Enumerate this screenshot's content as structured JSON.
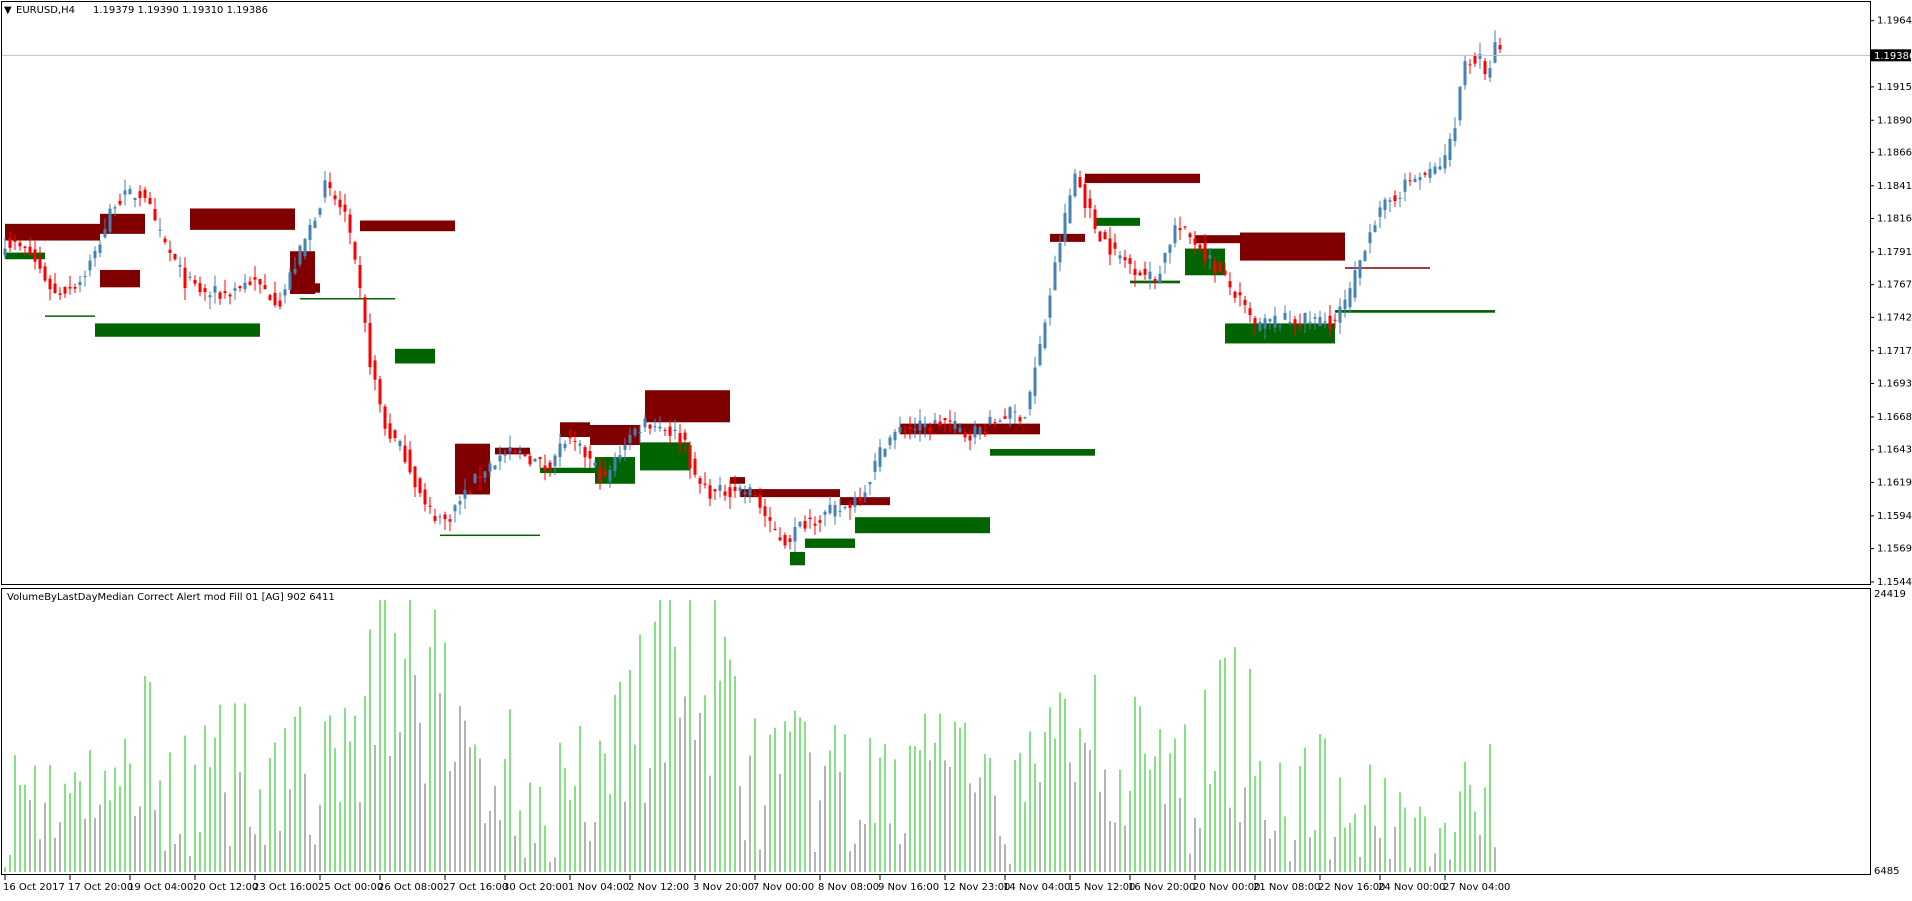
{
  "header": {
    "symbol": "EURUSD,H4",
    "ohlc": "1.19379 1.19390 1.19310 1.19386"
  },
  "subwindow": {
    "indicator_label": "VolumeByLastDayMedian Correct Alert mod Fill 01 [AG] 902 6411",
    "max_label": "24419",
    "min_label": "6485"
  },
  "colors": {
    "bull_candle": "#4682B4",
    "bear_candle": "#FF0000",
    "supply_zone": "#800000",
    "demand_zone": "#006400",
    "volume_above": "#32CD32",
    "volume_below": "#808080",
    "price_line": "#C0C0C0"
  },
  "chart_data": [
    {
      "type": "candlestick",
      "ylim": [
        1.15445,
        1.1977
      ],
      "y_ticks": [
        "1.19645",
        "1.19150",
        "1.18900",
        "1.18660",
        "1.18410",
        "1.18165",
        "1.17915",
        "1.17670",
        "1.17425",
        "1.17175",
        "1.16930",
        "1.16680",
        "1.16435",
        "1.16190",
        "1.15940",
        "1.15695",
        "1.15445"
      ],
      "current_price": "1.19386",
      "x_labels": [
        "16 Oct 2017",
        "17 Oct 20:00",
        "19 Oct 04:00",
        "20 Oct 12:00",
        "23 Oct 16:00",
        "25 Oct 00:00",
        "26 Oct 08:00",
        "27 Oct 16:00",
        "30 Oct 20:00",
        "1 Nov 04:00",
        "2 Nov 12:00",
        "3 Nov 20:00",
        "7 Nov 00:00",
        "8 Nov 08:00",
        "9 Nov 16:00",
        "12 Nov 23:00",
        "14 Nov 04:00",
        "15 Nov 12:00",
        "16 Nov 20:00",
        "20 Nov 00:00",
        "21 Nov 08:00",
        "22 Nov 16:00",
        "24 Nov 00:00",
        "27 Nov 04:00"
      ],
      "anchors": [
        [
          0,
          1.18
        ],
        [
          5,
          1.179
        ],
        [
          10,
          1.176
        ],
        [
          15,
          1.177
        ],
        [
          18,
          1.179
        ],
        [
          22,
          1.183
        ],
        [
          26,
          1.1835
        ],
        [
          28,
          1.1835
        ],
        [
          30,
          1.181
        ],
        [
          33,
          1.179
        ],
        [
          36,
          1.177
        ],
        [
          40,
          1.176
        ],
        [
          44,
          1.176
        ],
        [
          49,
          1.177
        ],
        [
          55,
          1.1755
        ],
        [
          60,
          1.18
        ],
        [
          64,
          1.184
        ],
        [
          68,
          1.182
        ],
        [
          71,
          1.176
        ],
        [
          73,
          1.171
        ],
        [
          76,
          1.166
        ],
        [
          80,
          1.164
        ],
        [
          84,
          1.16
        ],
        [
          88,
          1.159
        ],
        [
          92,
          1.161
        ],
        [
          96,
          1.163
        ],
        [
          100,
          1.164
        ],
        [
          104,
          1.164
        ],
        [
          108,
          1.163
        ],
        [
          112,
          1.165
        ],
        [
          116,
          1.164
        ],
        [
          120,
          1.162
        ],
        [
          124,
          1.165
        ],
        [
          128,
          1.1665
        ],
        [
          132,
          1.166
        ],
        [
          136,
          1.165
        ],
        [
          138,
          1.162
        ],
        [
          142,
          1.161
        ],
        [
          146,
          1.1615
        ],
        [
          150,
          1.161
        ],
        [
          153,
          1.1585
        ],
        [
          156,
          1.1575
        ],
        [
          160,
          1.159
        ],
        [
          164,
          1.1595
        ],
        [
          168,
          1.16
        ],
        [
          172,
          1.1615
        ],
        [
          176,
          1.165
        ],
        [
          180,
          1.166
        ],
        [
          184,
          1.166
        ],
        [
          188,
          1.1665
        ],
        [
          192,
          1.1655
        ],
        [
          196,
          1.166
        ],
        [
          200,
          1.167
        ],
        [
          204,
          1.167
        ],
        [
          207,
          1.172
        ],
        [
          211,
          1.18
        ],
        [
          214,
          1.185
        ],
        [
          216,
          1.183
        ],
        [
          218,
          1.181
        ],
        [
          222,
          1.179
        ],
        [
          226,
          1.178
        ],
        [
          230,
          1.177
        ],
        [
          234,
          1.181
        ],
        [
          238,
          1.18
        ],
        [
          242,
          1.178
        ],
        [
          246,
          1.176
        ],
        [
          250,
          1.1735
        ],
        [
          254,
          1.174
        ],
        [
          258,
          1.174
        ],
        [
          262,
          1.174
        ],
        [
          266,
          1.174
        ],
        [
          269,
          1.176
        ],
        [
          273,
          1.181
        ],
        [
          277,
          1.183
        ],
        [
          281,
          1.1845
        ],
        [
          285,
          1.185
        ],
        [
          288,
          1.186
        ],
        [
          290,
          1.189
        ],
        [
          292,
          1.1935
        ],
        [
          295,
          1.1935
        ],
        [
          296,
          1.192
        ],
        [
          298,
          1.1945
        ],
        [
          299,
          1.1939
        ]
      ]
    },
    {
      "type": "zones",
      "supply": [
        {
          "bars": [
            0,
            19
          ],
          "top": 1.18125,
          "bottom": 1.18
        },
        {
          "bars": [
            19,
            28
          ],
          "top": 1.182,
          "bottom": 1.1805
        },
        {
          "bars": [
            37,
            58
          ],
          "top": 1.1824,
          "bottom": 1.1808
        },
        {
          "bars": [
            19,
            27
          ],
          "top": 1.1778,
          "bottom": 1.1765
        },
        {
          "bars": [
            57,
            62
          ],
          "top": 1.1792,
          "bottom": 1.176
        },
        {
          "bars": [
            58,
            63
          ],
          "top": 1.1768,
          "bottom": 1.1761
        },
        {
          "bars": [
            71,
            90
          ],
          "top": 1.1815,
          "bottom": 1.1807
        },
        {
          "bars": [
            90,
            97
          ],
          "top": 1.1648,
          "bottom": 1.161
        },
        {
          "bars": [
            98,
            105
          ],
          "top": 1.1645,
          "bottom": 1.164
        },
        {
          "bars": [
            111,
            117
          ],
          "top": 1.1664,
          "bottom": 1.1653
        },
        {
          "bars": [
            117,
            127
          ],
          "top": 1.1662,
          "bottom": 1.1647
        },
        {
          "bars": [
            128,
            145
          ],
          "top": 1.1688,
          "bottom": 1.1664
        },
        {
          "bars": [
            145,
            148
          ],
          "top": 1.1623,
          "bottom": 1.1618
        },
        {
          "bars": [
            147,
            167
          ],
          "top": 1.1614,
          "bottom": 1.1608
        },
        {
          "bars": [
            167,
            177
          ],
          "top": 1.1608,
          "bottom": 1.1602
        },
        {
          "bars": [
            179,
            207
          ],
          "top": 1.1663,
          "bottom": 1.1655
        },
        {
          "bars": [
            216,
            239
          ],
          "top": 1.185,
          "bottom": 1.1843
        },
        {
          "bars": [
            209,
            216
          ],
          "top": 1.1805,
          "bottom": 1.1799
        },
        {
          "bars": [
            238,
            247
          ],
          "top": 1.1804,
          "bottom": 1.1798
        },
        {
          "bars": [
            247,
            268
          ],
          "top": 1.1806,
          "bottom": 1.1785
        },
        {
          "bars": [
            268,
            285
          ],
          "top": 1.178,
          "bottom": 1.1779
        }
      ],
      "demand": [
        {
          "bars": [
            0,
            8
          ],
          "top": 1.1791,
          "bottom": 1.1786
        },
        {
          "bars": [
            8,
            18
          ],
          "top": 1.1744,
          "bottom": 1.1743
        },
        {
          "bars": [
            18,
            51
          ],
          "top": 1.1738,
          "bottom": 1.1728
        },
        {
          "bars": [
            59,
            78
          ],
          "top": 1.1757,
          "bottom": 1.1756
        },
        {
          "bars": [
            78,
            86
          ],
          "top": 1.1719,
          "bottom": 1.1708
        },
        {
          "bars": [
            87,
            107
          ],
          "top": 1.158,
          "bottom": 1.1579
        },
        {
          "bars": [
            107,
            118
          ],
          "top": 1.163,
          "bottom": 1.1626
        },
        {
          "bars": [
            118,
            126
          ],
          "top": 1.1638,
          "bottom": 1.1618
        },
        {
          "bars": [
            127,
            137
          ],
          "top": 1.1649,
          "bottom": 1.1628
        },
        {
          "bars": [
            157,
            160
          ],
          "top": 1.1567,
          "bottom": 1.1557
        },
        {
          "bars": [
            160,
            170
          ],
          "top": 1.1577,
          "bottom": 1.157
        },
        {
          "bars": [
            170,
            197
          ],
          "top": 1.1593,
          "bottom": 1.1581
        },
        {
          "bars": [
            197,
            218
          ],
          "top": 1.1644,
          "bottom": 1.1639
        },
        {
          "bars": [
            218,
            227
          ],
          "top": 1.1817,
          "bottom": 1.1811
        },
        {
          "bars": [
            225,
            235
          ],
          "top": 1.177,
          "bottom": 1.1768
        },
        {
          "bars": [
            236,
            244
          ],
          "top": 1.1794,
          "bottom": 1.1774
        },
        {
          "bars": [
            244,
            266
          ],
          "top": 1.1738,
          "bottom": 1.1723
        },
        {
          "bars": [
            266,
            298
          ],
          "top": 1.1748,
          "bottom": 1.1746
        }
      ]
    },
    {
      "type": "bar",
      "series_name": "VolumeByLastDayMedian",
      "ylim": [
        6485,
        24419
      ],
      "bar_count": 299,
      "anchors": [
        [
          0,
          12000
        ],
        [
          10,
          13000
        ],
        [
          20,
          11000
        ],
        [
          28,
          17000
        ],
        [
          35,
          12000
        ],
        [
          45,
          14000
        ],
        [
          55,
          15000
        ],
        [
          65,
          13000
        ],
        [
          78,
          24419
        ],
        [
          88,
          17000
        ],
        [
          98,
          14000
        ],
        [
          110,
          12000
        ],
        [
          120,
          15000
        ],
        [
          128,
          20000
        ],
        [
          138,
          22000
        ],
        [
          150,
          14000
        ],
        [
          162,
          13000
        ],
        [
          172,
          12000
        ],
        [
          180,
          13000
        ],
        [
          186,
          17000
        ],
        [
          196,
          11000
        ],
        [
          206,
          13000
        ],
        [
          216,
          20000
        ],
        [
          226,
          14000
        ],
        [
          236,
          13000
        ],
        [
          246,
          18000
        ],
        [
          256,
          12000
        ],
        [
          266,
          12000
        ],
        [
          278,
          11000
        ],
        [
          288,
          10000
        ],
        [
          298,
          12000
        ]
      ]
    }
  ]
}
